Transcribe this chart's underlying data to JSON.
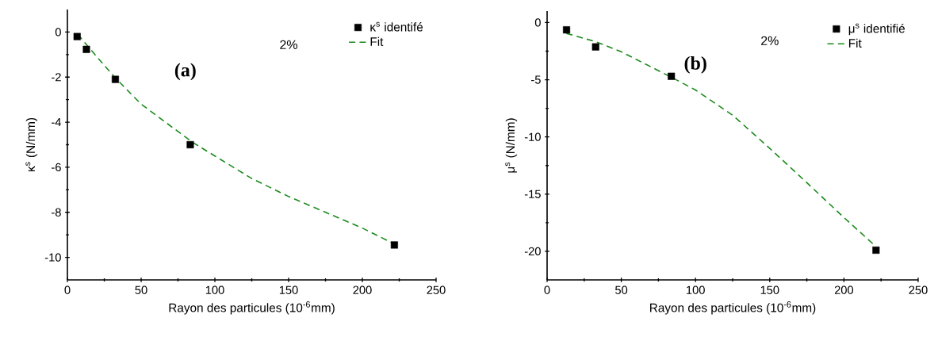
{
  "chart_data": [
    {
      "type": "scatter",
      "xlabel": "Rayon des particules (10$^{-6}$mm)",
      "ylabel": "κ$^{s}$ (N/mm)",
      "xlim": [
        0,
        250
      ],
      "ylim": [
        -11,
        1
      ],
      "xticks": [
        0,
        50,
        100,
        150,
        200,
        250
      ],
      "yticks": [
        -10,
        -8,
        -6,
        -4,
        -2,
        0
      ],
      "legend": "top right",
      "annotations": [
        "2%",
        "(a)"
      ],
      "series": [
        {
          "name": "κ$^{s}$ identifé",
          "color": "#000000",
          "marker": "square",
          "x": [
            6.6,
            12.9,
            32.5,
            83.3,
            221.7
          ],
          "values": [
            -0.2,
            -0.77,
            -2.1,
            -5.0,
            -9.45
          ]
        },
        {
          "name": "Fit",
          "type": "line",
          "color": "#1a8a1a",
          "line_style": "dashed",
          "x": [
            7,
            20,
            32,
            50,
            85,
            100,
            125,
            150,
            175,
            200,
            220
          ],
          "values": [
            -0.1,
            -1.1,
            -2.0,
            -3.2,
            -4.9,
            -5.5,
            -6.5,
            -7.3,
            -8.0,
            -8.7,
            -9.35
          ]
        }
      ]
    },
    {
      "type": "scatter",
      "xlabel": "Rayon des particules (10$^{-6}$mm)",
      "ylabel": "μ$^{s}$ (N/mm)",
      "xlim": [
        0,
        250
      ],
      "ylim": [
        -22.5,
        1
      ],
      "xticks": [
        0,
        50,
        100,
        150,
        200,
        250
      ],
      "yticks": [
        -20,
        -15,
        -10,
        -5,
        0
      ],
      "legend": "top right",
      "annotations": [
        "2%",
        "(b)"
      ],
      "series": [
        {
          "name": "μ$^{s}$ identifié",
          "color": "#000000",
          "marker": "square",
          "x": [
            13.1,
            32.7,
            83.7,
            221.6
          ],
          "values": [
            -0.64,
            -2.13,
            -4.7,
            -19.9
          ]
        },
        {
          "name": "Fit",
          "type": "line",
          "color": "#1a8a1a",
          "line_style": "dashed",
          "x": [
            13,
            32.7,
            50,
            84,
            100,
            125,
            150,
            175,
            200,
            220
          ],
          "values": [
            -0.95,
            -1.67,
            -2.56,
            -4.8,
            -5.9,
            -8.1,
            -11.0,
            -14.0,
            -17.05,
            -19.4
          ]
        }
      ]
    }
  ]
}
